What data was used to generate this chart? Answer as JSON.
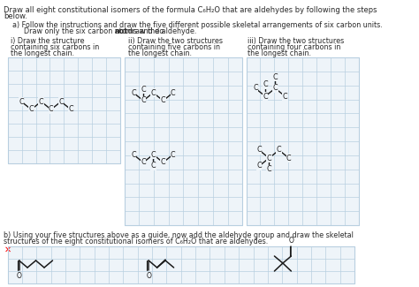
{
  "bg": "#ffffff",
  "grid_color": "#b8cfe0",
  "text_color": "#2a2a2a",
  "bond_color": "#1a1a1a",
  "label_fs": 6.5,
  "title_line1": "Draw all eight constitutional isomers of the formula C₆H₂O that are aldehydes by following the steps",
  "title_line2": "below.",
  "parta_line1": "    a) Follow the instructions and draw the five different possible skeletal arrangements of six carbon units.",
  "parta_line2": "    Draw only the six carbon atoms and do ",
  "parta_bold": "not",
  "parta_line2b": " draw the aldehyde.",
  "si_l1": "i) Draw the structure",
  "si_l2": "containing six carbons in",
  "si_l3": "the longest chain.",
  "sii_l1": "ii) Draw the two structures",
  "sii_l2": "containing five carbons in",
  "sii_l3": "the longest chain.",
  "siii_l1": "iii) Draw the two structures",
  "siii_l2": "containing four carbons in",
  "siii_l3": "the longest chain.",
  "partb_line1": "b) Using your five structures above as a guide, now add the aldehyde group and draw the skeletal",
  "partb_line2": "structures of the eight constitutional isomers of C₆H₂O that are aldehydes."
}
